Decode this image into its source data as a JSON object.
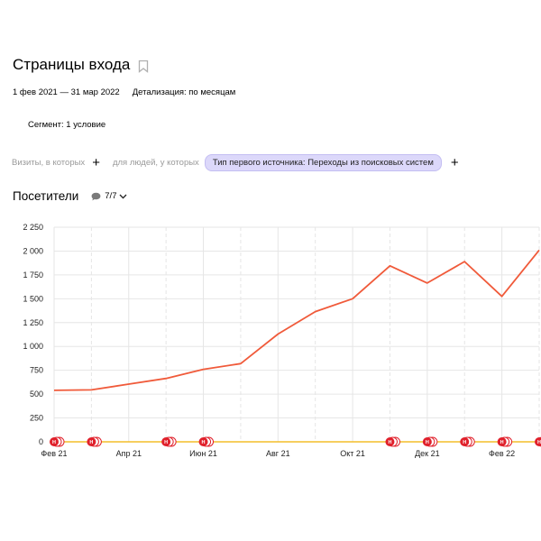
{
  "page": {
    "title": "Страницы входа",
    "bookmark_icon": "bookmark-icon"
  },
  "period": {
    "range": "1 фев 2021 — 31 мар 2022",
    "detail": "Детализация: по месяцам"
  },
  "segment": {
    "label": "Сегмент: 1 условие"
  },
  "filters": {
    "visits_label": "Визиты, в которых",
    "people_label": "для людей, у которых",
    "chip_label": "Тип первого источника: Переходы из поисковых систем",
    "plus_symbol": "+"
  },
  "section": {
    "title": "Посетители",
    "annotations_count": "7/7",
    "annotations_icon": "comment-icon"
  },
  "colors": {
    "line": "#f05a3a",
    "zero_line": "#f4bd2a",
    "grid": "#e6e6e6",
    "marker": "#e0212c"
  },
  "chart_data": {
    "type": "line",
    "y_ticks": [
      "0",
      "250",
      "500",
      "750",
      "1 000",
      "1 250",
      "1 500",
      "1 750",
      "2 000",
      "2 250"
    ],
    "ylim": [
      0,
      2250
    ],
    "x_tick_labels": [
      "Фев 21",
      "Апр 21",
      "Июн 21",
      "Авг 21",
      "Окт 21",
      "Дек 21",
      "Фев 22"
    ],
    "x": [
      "2021-02",
      "2021-03",
      "2021-04",
      "2021-05",
      "2021-06",
      "2021-07",
      "2021-08",
      "2021-09",
      "2021-10",
      "2021-11",
      "2021-12",
      "2022-01",
      "2022-02",
      "2022-03"
    ],
    "series": [
      {
        "values": [
          540,
          545,
          605,
          665,
          760,
          820,
          1130,
          1365,
          1500,
          1845,
          1665,
          1890,
          1525,
          2010
        ]
      }
    ],
    "annotation_marker_label": "Н",
    "annotation_months": [
      "2021-02",
      "2021-03",
      "2021-05",
      "2021-06",
      "2021-11",
      "2021-12",
      "2022-01",
      "2022-02",
      "2022-03"
    ],
    "grid": true
  }
}
